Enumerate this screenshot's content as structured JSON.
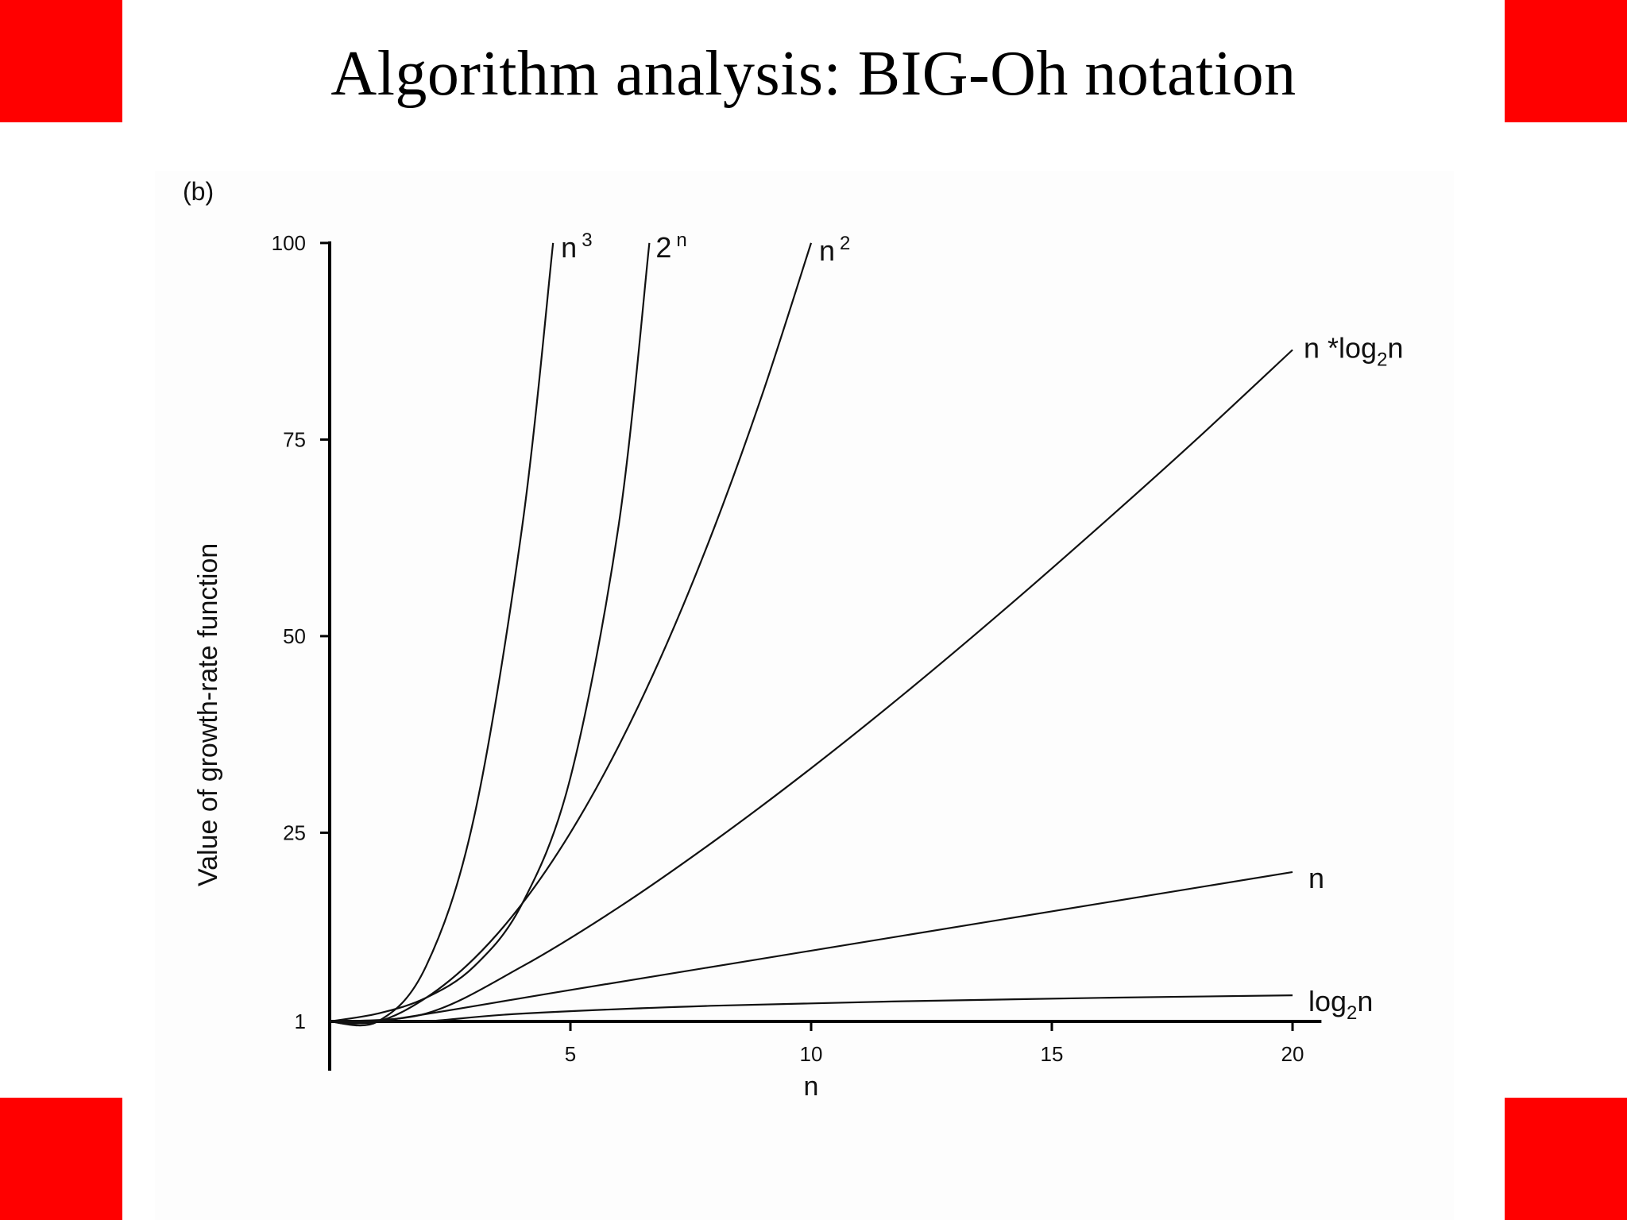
{
  "slide": {
    "title": "Algorithm analysis: BIG-Oh notation",
    "accent_color": "#ff0000",
    "background": "#ffffff"
  },
  "chart_data": {
    "type": "line",
    "panel_label": "(b)",
    "xlabel": "n",
    "ylabel": "Value of growth-rate function",
    "xlim": [
      0,
      20.6
    ],
    "ylim": [
      1,
      100
    ],
    "xticks": [
      "5",
      "10",
      "15",
      "20"
    ],
    "xtick_values": [
      5,
      10,
      15,
      20
    ],
    "yticks": [
      "1",
      "25",
      "50",
      "75",
      "100"
    ],
    "ytick_values": [
      1,
      25,
      50,
      75,
      100
    ],
    "grid": false,
    "legend": "none",
    "line_color": "#111111",
    "series": [
      {
        "label_base": "2",
        "label_sup": "n",
        "label_sub": "",
        "label_tail": "",
        "x": [
          0,
          1,
          2,
          3,
          4,
          5,
          6,
          6.64
        ],
        "y": [
          1,
          2,
          4,
          8,
          16,
          32,
          64,
          100
        ]
      },
      {
        "label_base": "n",
        "label_sup": "3",
        "label_sub": "",
        "label_tail": "",
        "x": [
          0,
          1,
          2,
          3,
          4,
          4.64
        ],
        "y": [
          1,
          1,
          8,
          27,
          64,
          100
        ]
      },
      {
        "label_base": "n",
        "label_sup": "2",
        "label_sub": "",
        "label_tail": "",
        "x": [
          0,
          1,
          2,
          3,
          4,
          5,
          6,
          7,
          8,
          9,
          10
        ],
        "y": [
          1,
          1,
          4,
          9,
          16,
          25,
          36,
          49,
          64,
          81,
          100
        ]
      },
      {
        "label_base": "n *log",
        "label_sup": "",
        "label_sub": "2",
        "label_tail": "n",
        "x": [
          0,
          2,
          4,
          6,
          8,
          10,
          12,
          14,
          16,
          18,
          20
        ],
        "y": [
          1,
          2,
          8,
          15.5,
          24,
          33.2,
          43,
          53.3,
          64,
          75,
          86.4
        ]
      },
      {
        "label_base": "n",
        "label_sup": "",
        "label_sub": "",
        "label_tail": "",
        "x": [
          0,
          1,
          5,
          10,
          15,
          20
        ],
        "y": [
          1,
          1,
          5,
          10,
          15,
          20
        ]
      },
      {
        "label_base": "log",
        "label_sup": "",
        "label_sub": "2",
        "label_tail": "n",
        "x": [
          0,
          1,
          2,
          4,
          8,
          12,
          16,
          20
        ],
        "y": [
          1,
          1,
          1,
          2,
          3,
          3.58,
          4,
          4.32
        ]
      }
    ]
  }
}
